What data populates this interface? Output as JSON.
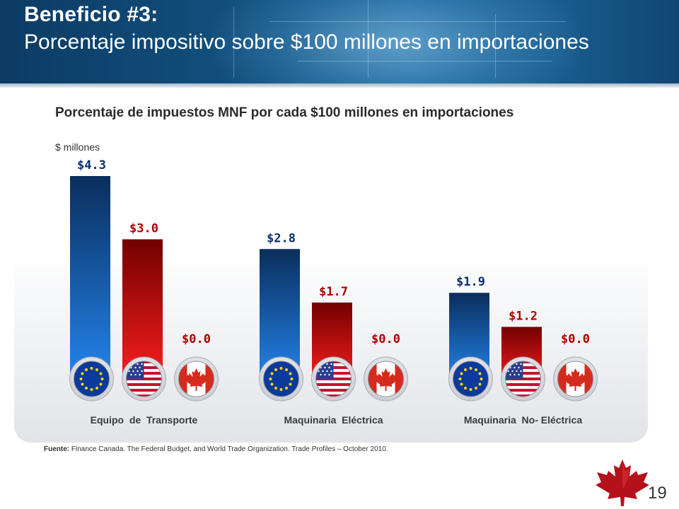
{
  "header": {
    "title_line1": "Beneficio #3:",
    "title_line2": "Porcentaje impositivo sobre $100 millones en importaciones"
  },
  "chart_data": {
    "type": "bar",
    "title": "Porcentaje de impuestos MNF por cada $100 millones en importaciones",
    "ylabel": "$ millones",
    "ylim": [
      0,
      4.3
    ],
    "categories": [
      "Equipo  de  Transporte",
      "Maquinaria  Eléctrica",
      "Maquinaria  No- Eléctrica"
    ],
    "series": [
      {
        "name": "EU",
        "color": "#1a5aa8",
        "values": [
          4.3,
          2.8,
          1.9
        ],
        "labels": [
          "$4.3",
          "$2.8",
          "$1.9"
        ]
      },
      {
        "name": "US",
        "color": "#c01010",
        "values": [
          3.0,
          1.7,
          1.2
        ],
        "labels": [
          "$3.0",
          "$1.7",
          "$1.2"
        ]
      },
      {
        "name": "Canada",
        "color": "#c01010",
        "values": [
          0.0,
          0.0,
          0.0
        ],
        "labels": [
          "$0.0",
          "$0.0",
          "$0.0"
        ]
      }
    ],
    "grid": false,
    "legend": "flags-below-bars"
  },
  "source": {
    "label": "Fuente:",
    "text": " Finance Canada. The Federal Budget, and World Trade Organization. Trade Profiles – October 2010."
  },
  "footer": {
    "page_number": "19"
  },
  "icons": {
    "flags": [
      "eu-flag-icon",
      "us-flag-icon",
      "canada-flag-icon"
    ],
    "logo": "maple-leaf-icon"
  },
  "colors": {
    "header": "#12507f",
    "eu_bar_dark": "#0a2e5c",
    "eu_bar_light": "#1f7ae0",
    "us_bar_dark": "#7a0000",
    "us_bar_light": "#ff1a1a",
    "eu_label": "#0a2e6e",
    "us_label": "#b00000"
  }
}
